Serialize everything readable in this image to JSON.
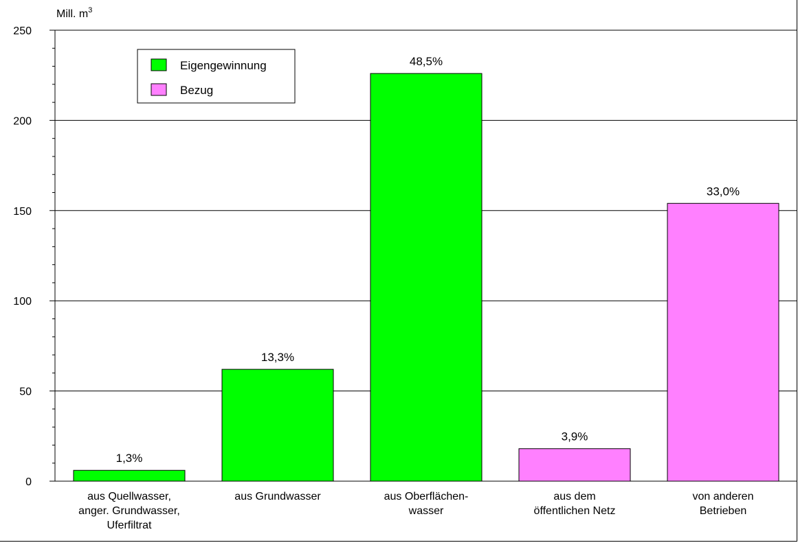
{
  "chart_data": {
    "type": "bar",
    "title": "",
    "xlabel": "",
    "ylabel": "Mill. m3",
    "unit": {
      "base": "Mill. m",
      "sup": "3"
    },
    "ylim": [
      0,
      250
    ],
    "yticks": [
      0,
      50,
      100,
      150,
      200,
      250
    ],
    "grid": true,
    "legend_position": "top-left",
    "legend": [
      {
        "name": "Eigengewinnung",
        "color": "#00ff00"
      },
      {
        "name": "Bezug",
        "color": "#ff80ff"
      }
    ],
    "categories": [
      [
        "aus Quellwasser,",
        "anger. Grundwasser,",
        "Uferfiltrat"
      ],
      [
        "aus Grundwasser"
      ],
      [
        "aus Oberflächen-",
        "wasser"
      ],
      [
        "aus dem",
        "öffentlichen Netz"
      ],
      [
        "von anderen",
        "Betrieben"
      ]
    ],
    "values": [
      6,
      62,
      226,
      18,
      154
    ],
    "data_labels": [
      "1,3%",
      "13,3%",
      "48,5%",
      "3,9%",
      "33,0%"
    ],
    "bar_series": [
      0,
      0,
      0,
      1,
      1
    ]
  }
}
